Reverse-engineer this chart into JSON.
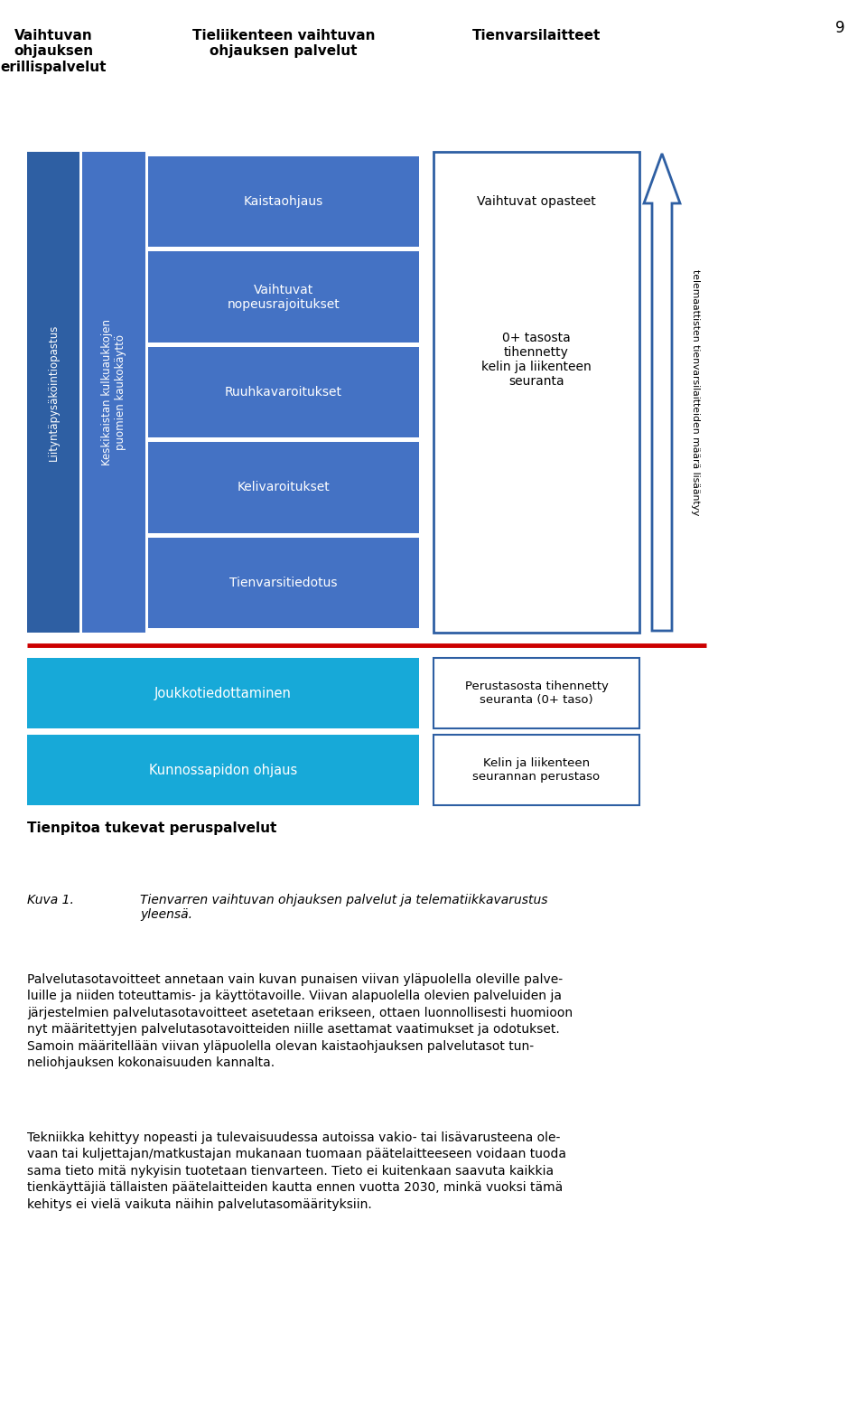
{
  "page_number": "9",
  "bg_color": "#ffffff",
  "dark_blue": "#2E5FA3",
  "mid_blue": "#4472C4",
  "cyan_blue": "#17A9D8",
  "border_blue": "#2E5FA3",
  "red_line": "#CC0000",
  "header1": "Vaihtuvan\nohjauksen\nerillispalvelut",
  "header2": "Tieliikenteen vaihtuvan\nohjauksen palvelut",
  "header3": "Tienvarsilaitteet",
  "col1_text": "Liityntäpysäköintiopastus",
  "col2_text": "Keskikaistan kulkuaukkojen\npuomien kaukokäyttö",
  "box_texts": [
    "Kaistaohjaus",
    "Vaihtuvat\nnopeusrajoitukset",
    "Ruuhkavaroitukset",
    "Kelivaroitukset",
    "Tienvarsitiedotus"
  ],
  "tienvarsi_line1": "Vaihtuvat opasteet",
  "tienvarsi_line2": "0+ tasosta\ntihennetty\nkelin ja liikenteen\nseuranta",
  "bottom_left_box1": "Joukkotiedottaminen",
  "bottom_left_box2": "Kunnossapidon ohjaus",
  "bottom_right_box1": "Perustasosta tihennetty\nseuranta (0+ taso)",
  "bottom_right_box2": "Kelin ja liikenteen\nseurannan perustaso",
  "right_arrow_text": "telemaattisten tienvarsilaitteiden määrä lisääntyy",
  "bottom_label": "Tienpitoa tukevat peruspalvelut",
  "caption_label": "Kuva 1.",
  "caption_text": "Tienvarren vaihtuvan ohjauksen palvelut ja telematiikkavarustus\nyleensä.",
  "para1": "Palvelutasotavoitteet annetaan vain kuvan punaisen viivan yläpuolella oleville palve-\nluille ja niiden toteuttamis- ja käyttötavoille. Viivan alapuolella olevien palveluiden ja\njärjestelmien palvelutasotavoitteet asetetaan erikseen, ottaen luonnollisesti huomioon\nnyt määritettyjen palvelutasotavoitteiden niille asettamat vaatimukset ja odotukset.\nSamoin määritellään viivan yläpuolella olevan kaistaohjauksen palvelutasot tun-\nneliohjauksen kokonaisuuden kannalta.",
  "para2": "Tekniikka kehittyy nopeasti ja tulevaisuudessa autoissa vakio- tai lisävarusteena ole-\nvaan tai kuljettajan/matkustajan mukanaan tuomaan päätelaitteeseen voidaan tuoda\nsama tieto mitä nykyisin tuotetaan tienvarteen. Tieto ei kuitenkaan saavuta kaikkia\ntienkäyttäjiä tällaisten päätelaitteiden kautta ennen vuotta 2030, minkä vuoksi tämä\nkehitys ei vielä vaikuta näihin palvelutasomäärityksiin."
}
